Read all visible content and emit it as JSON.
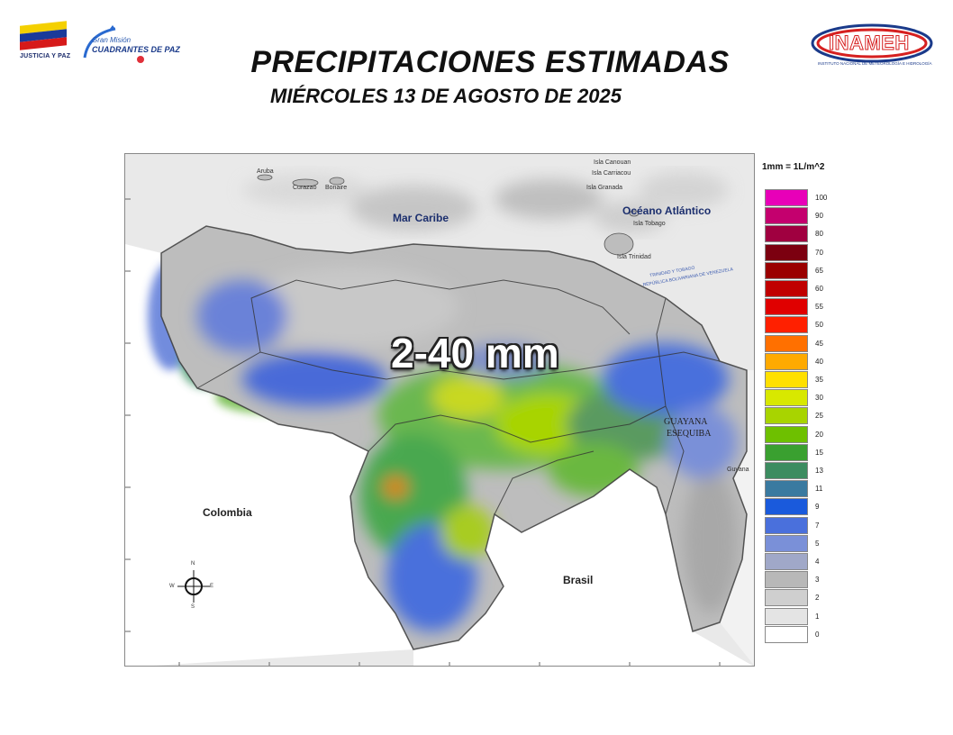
{
  "header": {
    "title": "PRECIPITACIONES ESTIMADAS",
    "subtitle": "MIÉRCOLES 13 DE AGOSTO DE 2025"
  },
  "logos": {
    "left_caption": "JUSTICIA Y PAZ",
    "gran_mision_small": "Gran Misión",
    "gran_mision_main": "CUADRANTES DE PAZ",
    "inameh_text": "INAMEH",
    "inameh_caption": "INSTITUTO NACIONAL DE METEOROLOGÍA E HIDROLOGÍA"
  },
  "map": {
    "range_label": "2-40 mm",
    "labels": {
      "caribbean": "Mar Caribe",
      "atlantic": "Océano Atlántico",
      "colombia": "Colombia",
      "brasil": "Brasil",
      "guayana_1": "GUAYANA",
      "guayana_2": "ESEQUIBA",
      "guyana": "Guyana",
      "aruba": "Aruba",
      "curazao": "Curazao",
      "bonaire": "Bonaire",
      "canouan": "Isla Canouan",
      "carriacou": "Isla Carriacou",
      "granada": "Isla Granada",
      "tobago": "Isla Tobago",
      "trinidad": "Isla Trinidad",
      "tt_border_1": "TRINIDAD Y TOBAGO",
      "tt_border_2": "REPÚBLICA BOLIVARIANA DE VENEZUELA"
    },
    "compass": {
      "n": "N",
      "s": "S",
      "e": "E",
      "w": "W"
    }
  },
  "legend": {
    "title": "1mm = 1L/m^2",
    "items": [
      {
        "label": "100",
        "color": "#e800b8"
      },
      {
        "label": "90",
        "color": "#c4006e"
      },
      {
        "label": "80",
        "color": "#a00040"
      },
      {
        "label": "70",
        "color": "#7c0010"
      },
      {
        "label": "65",
        "color": "#9a0000"
      },
      {
        "label": "60",
        "color": "#c00000"
      },
      {
        "label": "55",
        "color": "#e00000"
      },
      {
        "label": "50",
        "color": "#ff2000"
      },
      {
        "label": "45",
        "color": "#ff7000"
      },
      {
        "label": "40",
        "color": "#ffaa00"
      },
      {
        "label": "35",
        "color": "#ffe000"
      },
      {
        "label": "30",
        "color": "#d8e800"
      },
      {
        "label": "25",
        "color": "#a8d400"
      },
      {
        "label": "20",
        "color": "#6ec000"
      },
      {
        "label": "15",
        "color": "#3aa030"
      },
      {
        "label": "13",
        "color": "#3c8c60"
      },
      {
        "label": "11",
        "color": "#3a7aa0"
      },
      {
        "label": "9",
        "color": "#1a5adc"
      },
      {
        "label": "7",
        "color": "#4a70dc"
      },
      {
        "label": "5",
        "color": "#7a90d8"
      },
      {
        "label": "4",
        "color": "#a0a8c8"
      },
      {
        "label": "3",
        "color": "#b8b8b8"
      },
      {
        "label": "2",
        "color": "#cfcfcf"
      },
      {
        "label": "1",
        "color": "#e4e4e4"
      },
      {
        "label": "0",
        "color": "#ffffff"
      }
    ]
  }
}
